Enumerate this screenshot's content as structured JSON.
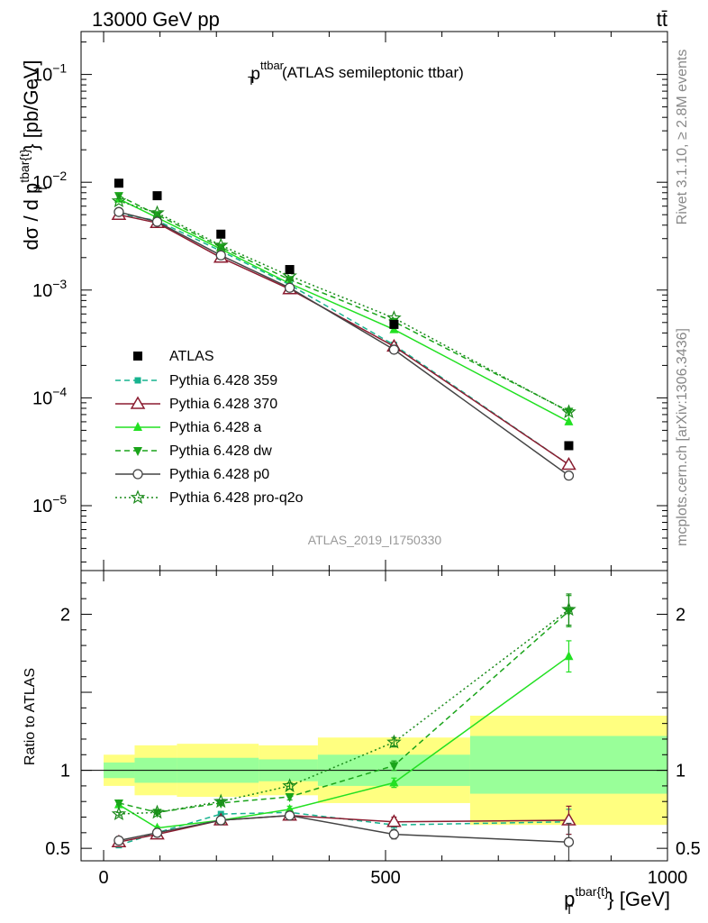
{
  "header": {
    "left": "13000 GeV pp",
    "right": "tt̄"
  },
  "side_labels": {
    "rivet": "Rivet 3.1.10, ≥ 2.8M events",
    "mcplots": "mcplots.cern.ch [arXiv:1306.3436]"
  },
  "chart_data": {
    "type": "line",
    "title": {
      "main": "p",
      "sub": "T",
      "sup": "ttbar",
      "rest": "(ATLAS semileptonic ttbar)"
    },
    "analysis_tag": "ATLAS_2019_I1750330",
    "xlabel": {
      "main": "p",
      "sub": "T",
      "sup": "tbar{t}",
      "rest": "} [GeV]"
    },
    "ylabel": {
      "pre": "dσ / d p",
      "sub": "T",
      "sup": "tbar{t}",
      "rest": "} [pb/GeV]"
    },
    "ratio_ylabel": "Ratio to ATLAS",
    "xlim": [
      -40,
      1000
    ],
    "ylim": [
      2.5e-06,
      0.25
    ],
    "ratio_ylim": [
      0.42,
      2.28
    ],
    "yscale": "log",
    "x_ticks": [
      0,
      500,
      1000
    ],
    "y_ticks": [
      {
        "value": 1e-05,
        "base": "10",
        "exp": "−5"
      },
      {
        "value": 0.0001,
        "base": "10",
        "exp": "−4"
      },
      {
        "value": 0.001,
        "base": "10",
        "exp": "−3"
      },
      {
        "value": 0.01,
        "base": "10",
        "exp": "−2"
      },
      {
        "value": 0.1,
        "base": "10",
        "exp": "−1"
      }
    ],
    "ratio_ticks": [
      {
        "value": 0.5,
        "label": "0.5"
      },
      {
        "value": 1,
        "label": "1"
      },
      {
        "value": 2,
        "label": "2"
      }
    ],
    "bins": [
      {
        "lo": 0,
        "hi": 55,
        "inner": [
          0.95,
          1.05
        ],
        "outer": [
          0.9,
          1.1
        ]
      },
      {
        "lo": 55,
        "hi": 130,
        "inner": [
          0.92,
          1.08
        ],
        "outer": [
          0.84,
          1.16
        ]
      },
      {
        "lo": 130,
        "hi": 275,
        "inner": [
          0.92,
          1.08
        ],
        "outer": [
          0.83,
          1.17
        ]
      },
      {
        "lo": 275,
        "hi": 380,
        "inner": [
          0.93,
          1.07
        ],
        "outer": [
          0.84,
          1.16
        ]
      },
      {
        "lo": 380,
        "hi": 650,
        "inner": [
          0.9,
          1.1
        ],
        "outer": [
          0.79,
          1.21
        ]
      },
      {
        "lo": 650,
        "hi": 1000,
        "inner": [
          0.85,
          1.22
        ],
        "outer": [
          0.65,
          1.35
        ]
      }
    ],
    "x": [
      27,
      95,
      208,
      330,
      515,
      825
    ],
    "data": {
      "name": "ATLAS",
      "values": [
        0.0098,
        0.0075,
        0.0033,
        0.00155,
        0.00048,
        3.6e-05
      ]
    },
    "series": [
      {
        "name": "Pythia 6.428 359",
        "color": "#17b38f",
        "dash": "6,4",
        "marker": "square",
        "values": [
          0.0051,
          0.0044,
          0.0023,
          0.00112,
          0.00031,
          2.4e-05
        ],
        "ratio": [
          0.52,
          0.6,
          0.72,
          0.73,
          0.65,
          0.67
        ],
        "ratio_err": [
          0.01,
          0.01,
          0.01,
          0.02,
          0.03,
          0.08
        ]
      },
      {
        "name": "Pythia 6.428 370",
        "color": "#8b1c30",
        "dash": "",
        "marker": "open-triangle",
        "values": [
          0.005,
          0.0042,
          0.002,
          0.00102,
          0.0003,
          2.4e-05
        ],
        "ratio": [
          0.54,
          0.59,
          0.68,
          0.71,
          0.67,
          0.68
        ],
        "ratio_err": [
          0.01,
          0.01,
          0.01,
          0.02,
          0.03,
          0.09
        ]
      },
      {
        "name": "Pythia 6.428 a",
        "color": "#22e022",
        "dash": "",
        "marker": "triangle",
        "values": [
          0.007,
          0.0047,
          0.0024,
          0.00115,
          0.00043,
          6e-05
        ],
        "ratio": [
          0.78,
          0.63,
          0.68,
          0.75,
          0.92,
          1.73
        ],
        "ratio_err": [
          0.01,
          0.01,
          0.01,
          0.02,
          0.03,
          0.1
        ]
      },
      {
        "name": "Pythia 6.428 dw",
        "color": "#1aa41a",
        "dash": "6,4",
        "marker": "down-triangle",
        "values": [
          0.0075,
          0.005,
          0.0025,
          0.00125,
          0.00051,
          7.5e-05
        ],
        "ratio": [
          0.79,
          0.73,
          0.79,
          0.83,
          1.03,
          2.02
        ],
        "ratio_err": [
          0.01,
          0.01,
          0.01,
          0.02,
          0.03,
          0.1
        ]
      },
      {
        "name": "Pythia 6.428 p0",
        "color": "#444444",
        "dash": "",
        "marker": "open-circle",
        "values": [
          0.0053,
          0.0043,
          0.0021,
          0.00105,
          0.00028,
          1.9e-05
        ],
        "ratio": [
          0.55,
          0.6,
          0.68,
          0.71,
          0.59,
          0.54
        ],
        "ratio_err": [
          0.01,
          0.01,
          0.01,
          0.02,
          0.03,
          0.12
        ]
      },
      {
        "name": "Pythia 6.428 pro-q2o",
        "color": "#1a8a1a",
        "dash": "2,3",
        "marker": "open-star",
        "values": [
          0.0067,
          0.0052,
          0.0026,
          0.00135,
          0.00055,
          7.4e-05
        ],
        "ratio": [
          0.72,
          0.73,
          0.8,
          0.9,
          1.18,
          2.03
        ],
        "ratio_err": [
          0.01,
          0.01,
          0.01,
          0.02,
          0.03,
          0.1
        ]
      }
    ],
    "legend_position": "lower-left"
  }
}
